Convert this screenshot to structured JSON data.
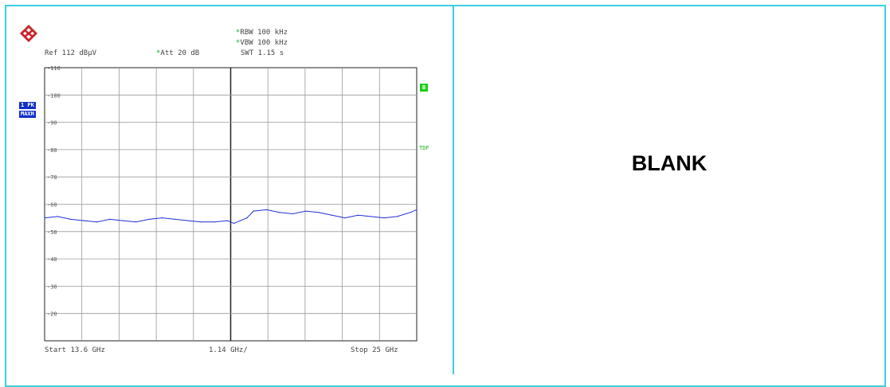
{
  "header": {
    "ref": "Ref  112 dBµV",
    "att": "Att  20 dB",
    "rbw": "RBW 100 kHz",
    "vbw": "VBW 100 kHz",
    "swt": "SWT 1.15 s"
  },
  "side_labels": {
    "trace_line1": "1 PK",
    "trace_line2": "MAXH",
    "limit_badge": "B",
    "tdf": "TDF"
  },
  "footer": {
    "start": "Start 13.6 GHz",
    "span_per_div": "1.14 GHz/",
    "stop": "Stop 25 GHz"
  },
  "right_panel": {
    "text": "BLANK"
  },
  "colors": {
    "trace": "#1f2fd6",
    "border": "#3ccfe0",
    "green": "#18d018",
    "blue_badge": "#1030c8"
  },
  "chart_data": {
    "type": "line",
    "xlabel": "",
    "ylabel": "",
    "xlim": [
      13.6,
      25.0
    ],
    "ylim": [
      10,
      110
    ],
    "yticks": [
      110,
      100,
      90,
      80,
      70,
      60,
      50,
      40,
      30,
      20
    ],
    "ytick_labels": [
      "110",
      "100",
      "90",
      "80",
      "70",
      "60",
      "50",
      "40",
      "30",
      "20"
    ],
    "x_divisions": 10,
    "grid": true,
    "series": [
      {
        "x": [
          13.6,
          14.0,
          14.4,
          14.8,
          15.2,
          15.6,
          16.0,
          16.4,
          16.8,
          17.2,
          17.6,
          18.0,
          18.4,
          18.8,
          19.2,
          19.4,
          19.6,
          19.8,
          20.0,
          20.4,
          20.8,
          21.2,
          21.6,
          22.0,
          22.4,
          22.8,
          23.2,
          23.6,
          24.0,
          24.4,
          24.8,
          25.0
        ],
        "y": [
          55,
          55.5,
          54.5,
          54,
          53.5,
          54.5,
          54,
          53.5,
          54.5,
          55,
          54.5,
          54,
          53.5,
          53.5,
          54,
          53,
          54,
          55,
          57.5,
          58,
          57,
          56.5,
          57.5,
          57,
          56,
          55,
          56,
          55.5,
          55,
          55.5,
          57,
          58
        ]
      }
    ]
  }
}
